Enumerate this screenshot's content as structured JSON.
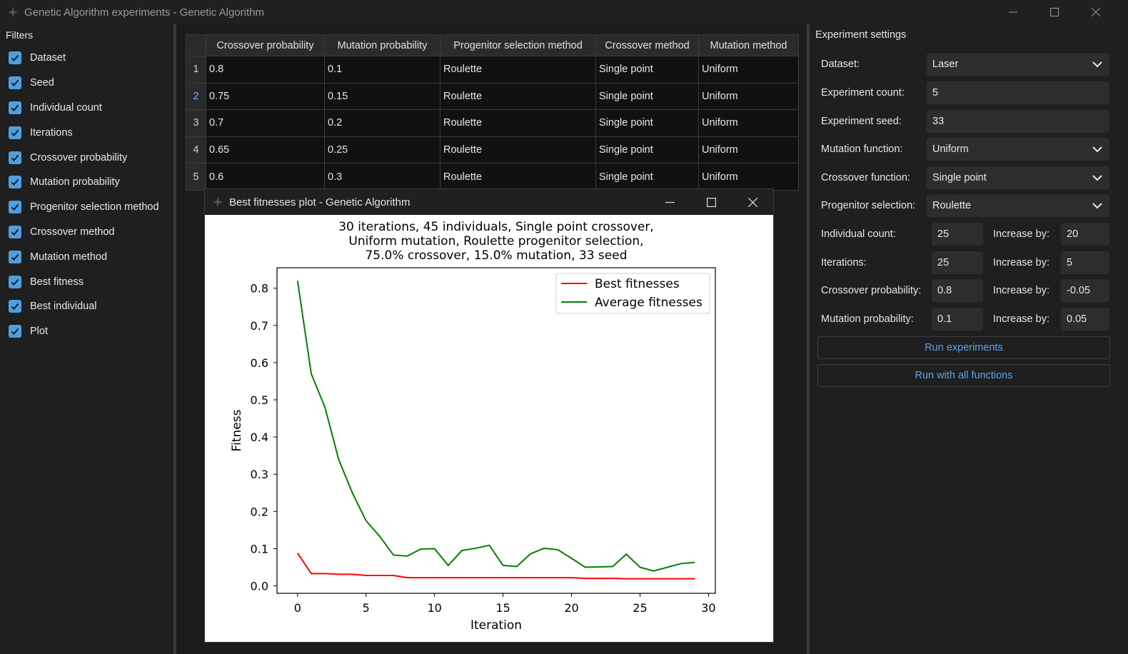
{
  "window": {
    "title": "Genetic Algorithm experiments - Genetic Algorithm",
    "app_icon": "genetic-algorithm-app-icon"
  },
  "filters": {
    "header": "Filters",
    "items": [
      {
        "label": "Dataset",
        "checked": true
      },
      {
        "label": "Seed",
        "checked": true
      },
      {
        "label": "Individual count",
        "checked": true
      },
      {
        "label": "Iterations",
        "checked": true
      },
      {
        "label": "Crossover probability",
        "checked": true
      },
      {
        "label": "Mutation probability",
        "checked": true
      },
      {
        "label": "Progenitor selection method",
        "checked": true
      },
      {
        "label": "Crossover method",
        "checked": true
      },
      {
        "label": "Mutation method",
        "checked": true
      },
      {
        "label": "Best fitness",
        "checked": true
      },
      {
        "label": "Best individual",
        "checked": true
      },
      {
        "label": "Plot",
        "checked": true
      }
    ]
  },
  "table": {
    "columns": [
      "Crossover probability",
      "Mutation probability",
      "Progenitor selection method",
      "Crossover method",
      "Mutation method"
    ],
    "rows": [
      {
        "num": "1",
        "cells": [
          "0.8",
          "0.1",
          "Roulette",
          "Single point",
          "Uniform"
        ]
      },
      {
        "num": "2",
        "cells": [
          "0.75",
          "0.15",
          "Roulette",
          "Single point",
          "Uniform"
        ],
        "selected": true
      },
      {
        "num": "3",
        "cells": [
          "0.7",
          "0.2",
          "Roulette",
          "Single point",
          "Uniform"
        ]
      },
      {
        "num": "4",
        "cells": [
          "0.65",
          "0.25",
          "Roulette",
          "Single point",
          "Uniform"
        ]
      },
      {
        "num": "5",
        "cells": [
          "0.6",
          "0.3",
          "Roulette",
          "Single point",
          "Uniform"
        ]
      }
    ]
  },
  "plot_window": {
    "title": "Best fitnesses plot - Genetic Algorithm"
  },
  "chart_data": {
    "type": "line",
    "title": "30 iterations, 45 individuals, Single point crossover,\nUniform mutation, Roulette progenitor selection,\n75.0% crossover, 15.0% mutation, 33 seed",
    "title_lines": [
      "30 iterations, 45 individuals, Single point crossover,",
      "Uniform mutation, Roulette progenitor selection,",
      "75.0% crossover, 15.0% mutation, 33 seed"
    ],
    "xlabel": "Iteration",
    "ylabel": "Fitness",
    "xlim": [
      -1.5,
      30.5
    ],
    "ylim": [
      -0.02,
      0.855
    ],
    "xticks": [
      0,
      5,
      10,
      15,
      20,
      25,
      30
    ],
    "yticks": [
      0.0,
      0.1,
      0.2,
      0.3,
      0.4,
      0.5,
      0.6,
      0.7,
      0.8
    ],
    "ytick_labels": [
      "0.0",
      "0.1",
      "0.2",
      "0.3",
      "0.4",
      "0.5",
      "0.6",
      "0.7",
      "0.8"
    ],
    "legend_position": "top-right",
    "grid": false,
    "x": [
      0,
      1,
      2,
      3,
      4,
      5,
      6,
      7,
      8,
      9,
      10,
      11,
      12,
      13,
      14,
      15,
      16,
      17,
      18,
      19,
      20,
      21,
      22,
      23,
      24,
      25,
      26,
      27,
      28,
      29
    ],
    "series": [
      {
        "name": "Best fitnesses",
        "color": "#ff0000",
        "values": [
          0.088,
          0.033,
          0.033,
          0.031,
          0.031,
          0.028,
          0.028,
          0.028,
          0.022,
          0.022,
          0.022,
          0.022,
          0.022,
          0.022,
          0.022,
          0.022,
          0.022,
          0.022,
          0.022,
          0.022,
          0.022,
          0.02,
          0.02,
          0.02,
          0.019,
          0.019,
          0.019,
          0.019,
          0.019,
          0.019
        ]
      },
      {
        "name": "Average fitnesses",
        "color": "#008000",
        "values": [
          0.82,
          0.57,
          0.48,
          0.34,
          0.25,
          0.175,
          0.133,
          0.083,
          0.08,
          0.099,
          0.1,
          0.055,
          0.095,
          0.101,
          0.109,
          0.055,
          0.052,
          0.086,
          0.101,
          0.097,
          0.074,
          0.05,
          0.051,
          0.052,
          0.085,
          0.05,
          0.04,
          0.05,
          0.06,
          0.063
        ]
      }
    ]
  },
  "settings": {
    "header": "Experiment settings",
    "dataset": {
      "label": "Dataset:",
      "value": "Laser"
    },
    "experiment_count": {
      "label": "Experiment count:",
      "value": "5"
    },
    "experiment_seed": {
      "label": "Experiment seed:",
      "value": "33"
    },
    "mutation_function": {
      "label": "Mutation function:",
      "value": "Uniform"
    },
    "crossover_function": {
      "label": "Crossover function:",
      "value": "Single point"
    },
    "progenitor_selection": {
      "label": "Progenitor selection:",
      "value": "Roulette"
    },
    "individual_count": {
      "label": "Individual count:",
      "value": "25",
      "inc_label": "Increase by:",
      "inc_value": "20"
    },
    "iterations": {
      "label": "Iterations:",
      "value": "25",
      "inc_label": "Increase by:",
      "inc_value": "5"
    },
    "crossover_probability": {
      "label": "Crossover probability:",
      "value": "0.8",
      "inc_label": "Increase by:",
      "inc_value": "-0.05"
    },
    "mutation_probability": {
      "label": "Mutation probability:",
      "value": "0.1",
      "inc_label": "Increase by:",
      "inc_value": "0.05"
    },
    "run_experiments": "Run experiments",
    "run_all": "Run with all functions"
  },
  "colors": {
    "accent": "#4f9ee0",
    "link": "#5aa5ec",
    "background": "#1c1c1c"
  }
}
